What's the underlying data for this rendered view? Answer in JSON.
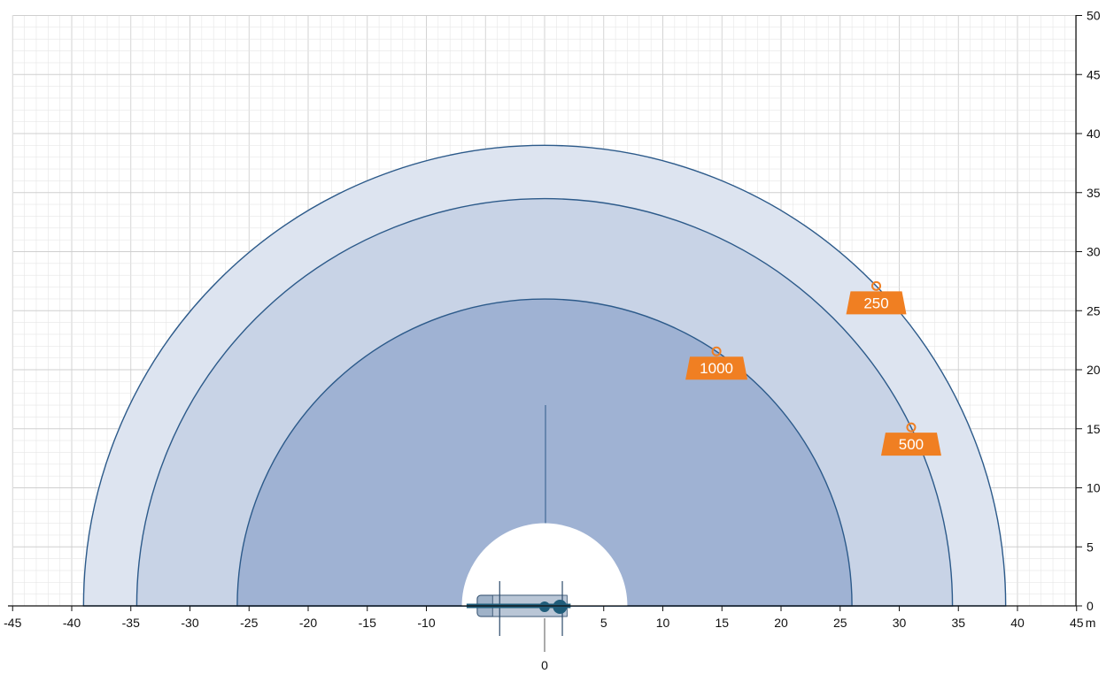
{
  "chart_data": {
    "type": "area",
    "x_axis": {
      "min": -45,
      "max": 45,
      "step": 5,
      "ticks": [
        -45,
        -40,
        -35,
        -30,
        -25,
        -20,
        -15,
        -10,
        5,
        10,
        15,
        20,
        25,
        30,
        35,
        40,
        45
      ],
      "zero_label": "0",
      "unit": "m"
    },
    "y_axis": {
      "min": 0,
      "max": 50,
      "step": 5,
      "ticks": [
        0,
        5,
        10,
        15,
        20,
        25,
        30,
        35,
        40,
        45,
        50
      ],
      "position": "right"
    },
    "grid": true,
    "ranges": [
      {
        "radius": 39,
        "label": "250",
        "marker_angle_deg": 44
      },
      {
        "radius": 34.5,
        "label": "500",
        "marker_angle_deg": 26
      },
      {
        "radius": 26,
        "label": "1000",
        "marker_angle_deg": 56
      }
    ],
    "exclusion_radius": 7,
    "colors": {
      "outer_band": "#dde4f0",
      "middle_band": "#c8d3e6",
      "inner_band": "#9fb2d3",
      "boundary": "#2c5a8a",
      "label_bg": "#f07f22",
      "grid_minor": "#e6e6e6",
      "grid_major": "#cfcfcf",
      "crane": "#1f5d7a"
    }
  }
}
